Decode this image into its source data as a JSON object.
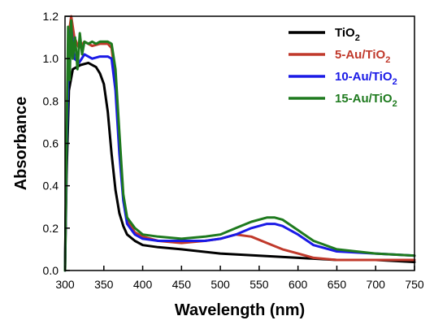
{
  "chart_data": {
    "type": "line",
    "title": "",
    "xlabel": "Wavelength (nm)",
    "ylabel": "Absorbance",
    "xlim": [
      300,
      750
    ],
    "ylim": [
      0.0,
      1.2
    ],
    "xticks": [
      "300",
      "350",
      "400",
      "450",
      "500",
      "550",
      "600",
      "650",
      "700",
      "750"
    ],
    "yticks": [
      "0.0",
      "0.2",
      "0.4",
      "0.6",
      "0.8",
      "1.0",
      "1.2"
    ],
    "grid": false,
    "legend_position": "top-right",
    "series": [
      {
        "name": "TiO2",
        "label_main": "TiO",
        "label_sub": "2",
        "color": "#000000",
        "x": [
          300,
          302,
          305,
          310,
          320,
          330,
          340,
          345,
          350,
          355,
          360,
          365,
          370,
          375,
          380,
          390,
          400,
          420,
          450,
          500,
          550,
          600,
          650,
          700,
          750
        ],
        "y": [
          0.0,
          0.45,
          0.85,
          0.95,
          0.97,
          0.98,
          0.96,
          0.93,
          0.88,
          0.75,
          0.55,
          0.38,
          0.27,
          0.21,
          0.17,
          0.14,
          0.12,
          0.11,
          0.1,
          0.08,
          0.07,
          0.06,
          0.05,
          0.05,
          0.04
        ]
      },
      {
        "name": "5-Au/TiO2",
        "label_main": "5-Au/TiO",
        "label_sub": "2",
        "color": "#c0392b",
        "x": [
          300,
          302,
          305,
          308,
          312,
          318,
          325,
          335,
          345,
          355,
          360,
          365,
          370,
          375,
          380,
          390,
          400,
          420,
          450,
          480,
          500,
          520,
          540,
          560,
          580,
          600,
          620,
          650,
          700,
          750
        ],
        "y": [
          0.0,
          0.6,
          1.12,
          1.2,
          1.1,
          1.05,
          1.08,
          1.06,
          1.07,
          1.07,
          1.05,
          0.9,
          0.6,
          0.35,
          0.24,
          0.18,
          0.16,
          0.14,
          0.13,
          0.14,
          0.15,
          0.17,
          0.16,
          0.13,
          0.1,
          0.08,
          0.06,
          0.05,
          0.05,
          0.05
        ]
      },
      {
        "name": "10-Au/TiO2",
        "label_main": "10-Au/TiO",
        "label_sub": "2",
        "color": "#1a1ae6",
        "x": [
          300,
          302,
          305,
          308,
          312,
          318,
          325,
          335,
          345,
          355,
          360,
          365,
          370,
          375,
          380,
          390,
          400,
          420,
          450,
          480,
          500,
          520,
          540,
          560,
          570,
          580,
          600,
          620,
          650,
          700,
          750
        ],
        "y": [
          0.0,
          0.55,
          1.05,
          1.15,
          1.0,
          0.98,
          1.02,
          1.0,
          1.01,
          1.01,
          1.0,
          0.85,
          0.55,
          0.33,
          0.22,
          0.17,
          0.15,
          0.14,
          0.14,
          0.14,
          0.15,
          0.17,
          0.2,
          0.22,
          0.22,
          0.21,
          0.17,
          0.12,
          0.09,
          0.08,
          0.07
        ]
      },
      {
        "name": "15-Au/TiO2",
        "label_main": "15-Au/TiO",
        "label_sub": "2",
        "color": "#1e7a1e",
        "x": [
          300,
          302,
          304,
          306,
          308,
          310,
          313,
          316,
          319,
          322,
          325,
          330,
          335,
          340,
          345,
          350,
          355,
          360,
          365,
          370,
          375,
          380,
          390,
          400,
          420,
          450,
          480,
          500,
          520,
          540,
          560,
          570,
          580,
          600,
          620,
          650,
          700,
          750
        ],
        "y": [
          0.0,
          0.6,
          1.15,
          0.9,
          1.18,
          1.0,
          1.1,
          0.95,
          1.12,
          1.02,
          1.08,
          1.07,
          1.08,
          1.07,
          1.08,
          1.08,
          1.08,
          1.07,
          0.95,
          0.65,
          0.36,
          0.25,
          0.2,
          0.17,
          0.16,
          0.15,
          0.16,
          0.17,
          0.2,
          0.23,
          0.25,
          0.25,
          0.24,
          0.19,
          0.14,
          0.1,
          0.08,
          0.07
        ]
      }
    ]
  }
}
